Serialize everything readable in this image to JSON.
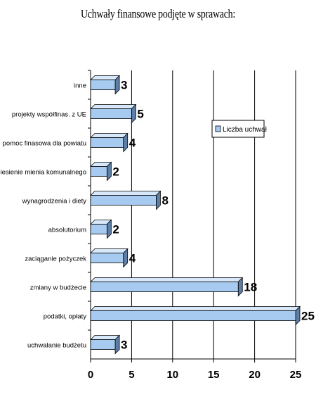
{
  "chart_data": {
    "type": "bar",
    "orientation": "horizontal",
    "title": "Uchwały finansowe podjęte w sprawach:",
    "categories": [
      "inne",
      "projekty współfinas. z UE",
      "pomoc finasowa dla powiatu",
      "wniesienie mienia komunalnego",
      "wynagrodzenia i diety",
      "absolutorium",
      "zaciąganie pożyczek",
      "zmiany w budżecie",
      "podatki, opłaty",
      "uchwalanie budżetu"
    ],
    "series": [
      {
        "name": "Liczba uchwał",
        "values": [
          3,
          5,
          4,
          2,
          8,
          2,
          4,
          18,
          25,
          3
        ]
      }
    ],
    "xlim": [
      0,
      25
    ],
    "xticks": [
      0,
      5,
      10,
      15,
      20,
      25
    ],
    "grid": true,
    "legend": "right",
    "colors": {
      "bar_front": "#a6caf0",
      "bar_top": "#d7e8fa",
      "bar_side": "#5d7fa6",
      "outline": "#000000"
    }
  }
}
